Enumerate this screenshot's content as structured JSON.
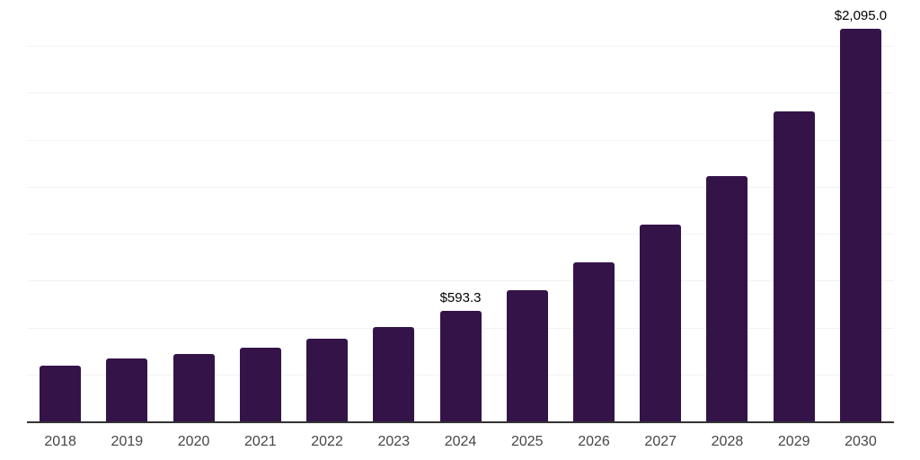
{
  "chart_data": {
    "type": "bar",
    "title": "",
    "xlabel": "",
    "ylabel": "",
    "categories": [
      "2018",
      "2019",
      "2020",
      "2021",
      "2022",
      "2023",
      "2024",
      "2025",
      "2026",
      "2027",
      "2028",
      "2029",
      "2030"
    ],
    "values": [
      301,
      340,
      366,
      399,
      445,
      509,
      593.3,
      705,
      851,
      1055,
      1313,
      1657,
      2095.0
    ],
    "point_labels": [
      "",
      "",
      "",
      "",
      "",
      "",
      "$593.3",
      "",
      "",
      "",
      "",
      "",
      "$2,095.0"
    ],
    "ylim": [
      0,
      2250
    ],
    "grid_step": 250,
    "grid": "horizontal-only",
    "legend": "none",
    "colors": {
      "bar": "#341349",
      "axis_line": "#333333",
      "gridline": "#f2f2f2",
      "tick_label": "#464646",
      "data_label": "#000000",
      "background": "#ffffff"
    }
  }
}
